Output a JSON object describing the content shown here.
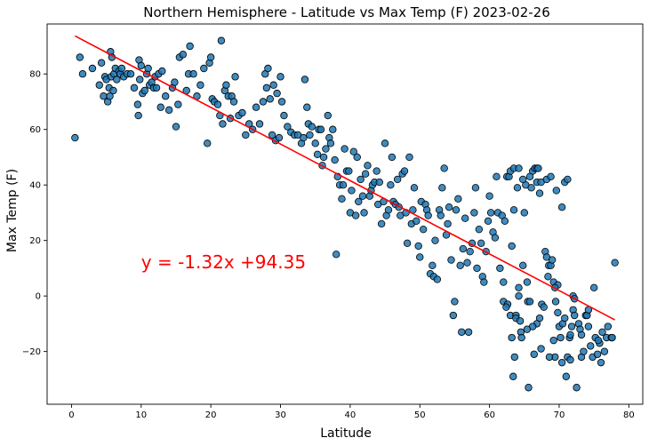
{
  "chart_data": {
    "type": "scatter",
    "title": "Northern Hemisphere - Latitude vs Max Temp (F) 2023-02-26",
    "xlabel": "Latitude",
    "ylabel": "Max Temp (F)",
    "xlim": [
      -3.5,
      82
    ],
    "ylim": [
      -39,
      98
    ],
    "xticks": [
      0,
      10,
      20,
      30,
      40,
      50,
      60,
      70,
      80
    ],
    "yticks": [
      -20,
      0,
      20,
      40,
      60,
      80
    ],
    "grid": false,
    "marker_color": "#1f77b4",
    "marker_edge_color": "#000000",
    "regression": {
      "slope": -1.32,
      "intercept": 94.35,
      "x_range": [
        0.5,
        78
      ],
      "color": "#ff0000",
      "equation": "y = -1.32x +94.35",
      "equation_at": [
        10,
        10
      ]
    },
    "points": [
      [
        0.5,
        57
      ],
      [
        1.2,
        86
      ],
      [
        1.6,
        80
      ],
      [
        3,
        82
      ],
      [
        4,
        76
      ],
      [
        4.3,
        84
      ],
      [
        4.6,
        72
      ],
      [
        4.8,
        79
      ],
      [
        5,
        78
      ],
      [
        5.2,
        70
      ],
      [
        5.4,
        75
      ],
      [
        5.5,
        72
      ],
      [
        5.6,
        88
      ],
      [
        5.7,
        79
      ],
      [
        5.8,
        86
      ],
      [
        6,
        74
      ],
      [
        6.1,
        80
      ],
      [
        6.3,
        82
      ],
      [
        6.5,
        78
      ],
      [
        6.8,
        81
      ],
      [
        7,
        80
      ],
      [
        7.2,
        82
      ],
      [
        7.5,
        79
      ],
      [
        8,
        80
      ],
      [
        8.5,
        80
      ],
      [
        9,
        75
      ],
      [
        9.5,
        69
      ],
      [
        9.6,
        65
      ],
      [
        9.7,
        85
      ],
      [
        9.8,
        78
      ],
      [
        10,
        83
      ],
      [
        10.2,
        73
      ],
      [
        10.5,
        74
      ],
      [
        10.8,
        80
      ],
      [
        11,
        82
      ],
      [
        11.2,
        76
      ],
      [
        11.5,
        77
      ],
      [
        11.8,
        75
      ],
      [
        12,
        79
      ],
      [
        12.2,
        75
      ],
      [
        12.5,
        80
      ],
      [
        12.8,
        68
      ],
      [
        13,
        81
      ],
      [
        13.5,
        72
      ],
      [
        14,
        67
      ],
      [
        14.5,
        75
      ],
      [
        14.8,
        77
      ],
      [
        15,
        61
      ],
      [
        15.3,
        69
      ],
      [
        15.5,
        86
      ],
      [
        16,
        87
      ],
      [
        16.5,
        74
      ],
      [
        16.8,
        80
      ],
      [
        17,
        90
      ],
      [
        17.5,
        80
      ],
      [
        18,
        72
      ],
      [
        18.5,
        76
      ],
      [
        19,
        82
      ],
      [
        19.5,
        55
      ],
      [
        19.8,
        84
      ],
      [
        20,
        86
      ],
      [
        20.2,
        71
      ],
      [
        20.5,
        70
      ],
      [
        21,
        69
      ],
      [
        21.3,
        65
      ],
      [
        21.5,
        92
      ],
      [
        21.7,
        62
      ],
      [
        22,
        74
      ],
      [
        22.2,
        76
      ],
      [
        22.5,
        72
      ],
      [
        22.8,
        64
      ],
      [
        23,
        72
      ],
      [
        23.3,
        70
      ],
      [
        23.5,
        79
      ],
      [
        24,
        65
      ],
      [
        24.5,
        66
      ],
      [
        25,
        58
      ],
      [
        25.5,
        62
      ],
      [
        26,
        60
      ],
      [
        26.5,
        68
      ],
      [
        27,
        62
      ],
      [
        27.5,
        70
      ],
      [
        27.8,
        80
      ],
      [
        28,
        75
      ],
      [
        28.2,
        82
      ],
      [
        28.5,
        71
      ],
      [
        28.8,
        58
      ],
      [
        29,
        76
      ],
      [
        29.3,
        56
      ],
      [
        29.5,
        73
      ],
      [
        29.8,
        57
      ],
      [
        30,
        79
      ],
      [
        30.2,
        70
      ],
      [
        30.5,
        65
      ],
      [
        31,
        61
      ],
      [
        31.5,
        59
      ],
      [
        32,
        58
      ],
      [
        32.5,
        58
      ],
      [
        33,
        55
      ],
      [
        33.3,
        57
      ],
      [
        33.5,
        78
      ],
      [
        33.8,
        68
      ],
      [
        34,
        62
      ],
      [
        34.2,
        58
      ],
      [
        34.5,
        61
      ],
      [
        35,
        55
      ],
      [
        35.3,
        51
      ],
      [
        35.5,
        60
      ],
      [
        35.8,
        60
      ],
      [
        36,
        47
      ],
      [
        36.2,
        50
      ],
      [
        36.5,
        53
      ],
      [
        36.8,
        65
      ],
      [
        37,
        57
      ],
      [
        37.2,
        55
      ],
      [
        37.5,
        60
      ],
      [
        37.8,
        49
      ],
      [
        38,
        15
      ],
      [
        38.2,
        43
      ],
      [
        38.5,
        40
      ],
      [
        38.8,
        35
      ],
      [
        39,
        40
      ],
      [
        39.2,
        53
      ],
      [
        39.5,
        45
      ],
      [
        39.8,
        45
      ],
      [
        40,
        30
      ],
      [
        40.2,
        38
      ],
      [
        40.5,
        52
      ],
      [
        40.8,
        29
      ],
      [
        41,
        50
      ],
      [
        41.2,
        34
      ],
      [
        41.5,
        42
      ],
      [
        41.8,
        36
      ],
      [
        42,
        30
      ],
      [
        42.2,
        44
      ],
      [
        42.5,
        47
      ],
      [
        42.8,
        36
      ],
      [
        43,
        38
      ],
      [
        43.2,
        40
      ],
      [
        43.5,
        41
      ],
      [
        43.8,
        45
      ],
      [
        44,
        33
      ],
      [
        44.2,
        41
      ],
      [
        44.5,
        26
      ],
      [
        44.8,
        34
      ],
      [
        45,
        55
      ],
      [
        45.2,
        29
      ],
      [
        45.5,
        31
      ],
      [
        45.8,
        40
      ],
      [
        46,
        50
      ],
      [
        46.2,
        34
      ],
      [
        46.5,
        33
      ],
      [
        46.8,
        42
      ],
      [
        47,
        32
      ],
      [
        47.2,
        29
      ],
      [
        47.5,
        44
      ],
      [
        47.8,
        45
      ],
      [
        48,
        30
      ],
      [
        48.2,
        19
      ],
      [
        48.5,
        50
      ],
      [
        48.8,
        26
      ],
      [
        49,
        31
      ],
      [
        49.2,
        39
      ],
      [
        49.5,
        27
      ],
      [
        49.8,
        18
      ],
      [
        50,
        14
      ],
      [
        50.2,
        34
      ],
      [
        50.5,
        24
      ],
      [
        50.8,
        33
      ],
      [
        51,
        31
      ],
      [
        51.2,
        29
      ],
      [
        51.5,
        8
      ],
      [
        51.8,
        11
      ],
      [
        52,
        7
      ],
      [
        52.2,
        20
      ],
      [
        52.5,
        6
      ],
      [
        52.8,
        31
      ],
      [
        53,
        29
      ],
      [
        53.2,
        39
      ],
      [
        53.5,
        46
      ],
      [
        53.8,
        22
      ],
      [
        54,
        26
      ],
      [
        54.2,
        32
      ],
      [
        54.5,
        13
      ],
      [
        54.8,
        -7
      ],
      [
        55,
        -2
      ],
      [
        55.2,
        31
      ],
      [
        55.5,
        35
      ],
      [
        55.8,
        11
      ],
      [
        56,
        -13
      ],
      [
        56.2,
        17
      ],
      [
        56.5,
        28
      ],
      [
        56.8,
        12
      ],
      [
        57,
        -13
      ],
      [
        57.2,
        16
      ],
      [
        57.5,
        19
      ],
      [
        57.8,
        30
      ],
      [
        58,
        39
      ],
      [
        58.2,
        10
      ],
      [
        58.5,
        24
      ],
      [
        58.8,
        19
      ],
      [
        59,
        7
      ],
      [
        59.2,
        5
      ],
      [
        59.5,
        16
      ],
      [
        59.8,
        27
      ],
      [
        60,
        36
      ],
      [
        60.2,
        30
      ],
      [
        60.5,
        23
      ],
      [
        60.8,
        21
      ],
      [
        61,
        43
      ],
      [
        61.2,
        30
      ],
      [
        61.5,
        10
      ],
      [
        61.8,
        29
      ],
      [
        62,
        5
      ],
      [
        62.2,
        27
      ],
      [
        62.5,
        43
      ],
      [
        62.8,
        43
      ],
      [
        63,
        -7
      ],
      [
        63.2,
        18
      ],
      [
        63.5,
        31
      ],
      [
        63.8,
        -7
      ],
      [
        64,
        39
      ],
      [
        64.2,
        0
      ],
      [
        64.5,
        -13
      ],
      [
        64.8,
        11
      ],
      [
        65,
        30
      ],
      [
        65.2,
        40
      ],
      [
        65.5,
        -2
      ],
      [
        65.8,
        -2
      ],
      [
        66,
        39
      ],
      [
        66.2,
        45
      ],
      [
        66.5,
        46
      ],
      [
        66.8,
        46
      ],
      [
        67,
        46
      ],
      [
        67.2,
        37
      ],
      [
        67.5,
        -3
      ],
      [
        67.8,
        -4
      ],
      [
        68,
        16
      ],
      [
        68.2,
        14
      ],
      [
        68.5,
        11
      ],
      [
        68.8,
        11
      ],
      [
        69,
        13
      ],
      [
        69.2,
        5
      ],
      [
        69.5,
        -2
      ],
      [
        69.8,
        -6
      ],
      [
        70,
        -11
      ],
      [
        70.2,
        -15
      ],
      [
        70.5,
        -10
      ],
      [
        70.8,
        -8
      ],
      [
        71,
        -29
      ],
      [
        71.2,
        -22
      ],
      [
        71.5,
        -15
      ],
      [
        71.8,
        -11
      ],
      [
        72,
        -5
      ],
      [
        72.2,
        -7
      ],
      [
        72.5,
        -33
      ],
      [
        72.8,
        -10
      ],
      [
        73,
        -12
      ],
      [
        73.2,
        -22
      ],
      [
        73.5,
        -20
      ],
      [
        73.8,
        -7
      ],
      [
        74,
        -7
      ],
      [
        74.2,
        -5
      ],
      [
        74.5,
        -18
      ],
      [
        74.8,
        -22
      ],
      [
        75,
        3
      ],
      [
        75.2,
        -15
      ],
      [
        75.5,
        -21
      ],
      [
        75.8,
        -17
      ],
      [
        76,
        -24
      ],
      [
        76.2,
        -13
      ],
      [
        76.5,
        -20
      ],
      [
        76.8,
        -15
      ],
      [
        77,
        -11
      ],
      [
        77.5,
        -15
      ],
      [
        78,
        12
      ],
      [
        63,
        45
      ],
      [
        63.5,
        46
      ],
      [
        64.2,
        46
      ],
      [
        64.8,
        42
      ],
      [
        65.8,
        43
      ],
      [
        66.8,
        41
      ],
      [
        67.4,
        41
      ],
      [
        68.2,
        42
      ],
      [
        68.8,
        43
      ],
      [
        69.6,
        38
      ],
      [
        70.4,
        32
      ],
      [
        70.8,
        41
      ],
      [
        71.2,
        42
      ],
      [
        72,
        0
      ],
      [
        72.2,
        -1
      ],
      [
        71.6,
        -14
      ],
      [
        73.2,
        -14
      ],
      [
        74.2,
        -11
      ],
      [
        77.6,
        -15
      ],
      [
        75.6,
        -16
      ],
      [
        69.4,
        -22
      ],
      [
        70.4,
        -24
      ],
      [
        71.6,
        -23
      ],
      [
        69.8,
        4
      ],
      [
        69.4,
        3
      ],
      [
        68.4,
        7
      ],
      [
        67.2,
        -8
      ],
      [
        66.8,
        -10
      ],
      [
        66.2,
        -11
      ],
      [
        65.4,
        -12
      ],
      [
        64.6,
        -15
      ],
      [
        63.2,
        -15
      ],
      [
        63.6,
        -22
      ],
      [
        63.4,
        -29
      ],
      [
        65.6,
        -33
      ],
      [
        67.4,
        -19
      ],
      [
        66.4,
        -21
      ],
      [
        69.2,
        -16
      ],
      [
        68.6,
        -22
      ],
      [
        62,
        -2
      ],
      [
        62.6,
        -3
      ],
      [
        63.8,
        -8
      ],
      [
        64.4,
        -9
      ],
      [
        65.4,
        5
      ],
      [
        64.2,
        3
      ],
      [
        62.4,
        -4
      ]
    ]
  }
}
